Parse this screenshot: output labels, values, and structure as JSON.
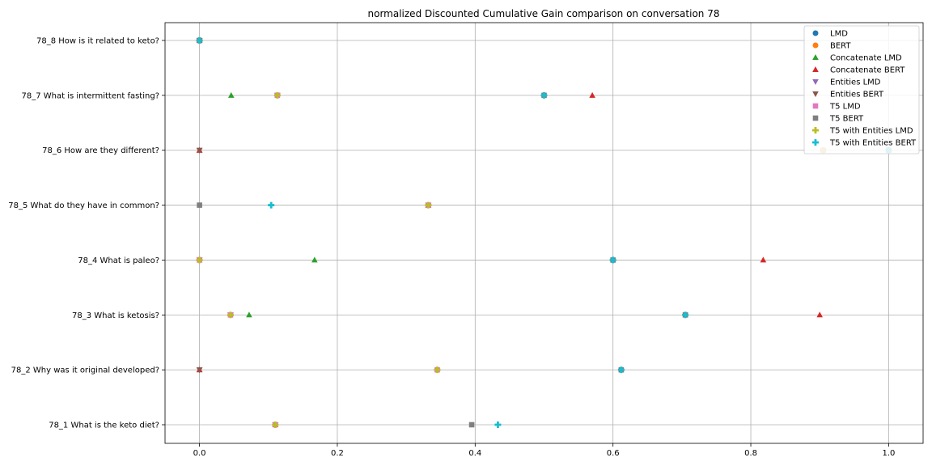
{
  "chart_data": {
    "type": "scatter",
    "title": "normalized Discounted Cumulative Gain comparison on conversation 78",
    "xlabel": "",
    "ylabel": "",
    "xlim": [
      -0.05,
      1.05
    ],
    "x_ticks": [
      "0.0",
      "0.2",
      "0.4",
      "0.6",
      "0.8",
      "1.0"
    ],
    "x_tick_values": [
      0.0,
      0.2,
      0.4,
      0.6,
      0.8,
      1.0
    ],
    "categories": [
      "78_1 What is the keto diet?",
      "78_2 Why was it original developed?",
      "78_3 What is ketosis?",
      "78_4 What is paleo?",
      "78_5 What do they have in common?",
      "78_6 How are they different?",
      "78_7 What is intermittent fasting?",
      "78_8 How is it related to keto?"
    ],
    "grid": true,
    "legend_position": "top-right",
    "series": [
      {
        "name": "LMD",
        "marker": "circle",
        "color": "#1f77b4",
        "values": [
          0.11,
          0.345,
          0.045,
          0.0,
          0.332,
          0.905,
          0.113,
          0.0
        ]
      },
      {
        "name": "BERT",
        "marker": "circle",
        "color": "#ff7f0e",
        "values": [
          0.11,
          0.345,
          0.045,
          0.0,
          0.332,
          0.905,
          0.113,
          0.0
        ]
      },
      {
        "name": "Concatenate LMD",
        "marker": "triangle-up",
        "color": "#2ca02c",
        "values": [
          0.11,
          0.0,
          0.072,
          0.167,
          0.332,
          0.0,
          0.046,
          0.0
        ]
      },
      {
        "name": "Concatenate BERT",
        "marker": "triangle-up",
        "color": "#d62728",
        "values": [
          0.11,
          0.0,
          0.9,
          0.818,
          0.332,
          0.0,
          0.57,
          0.0
        ]
      },
      {
        "name": "Entities LMD",
        "marker": "triangle-down",
        "color": "#9467bd",
        "values": [
          0.11,
          0.0,
          0.045,
          0.0,
          0.332,
          0.0,
          0.113,
          0.0
        ]
      },
      {
        "name": "Entities BERT",
        "marker": "triangle-down",
        "color": "#8c564b",
        "values": [
          0.11,
          0.0,
          0.045,
          0.0,
          0.332,
          0.0,
          0.113,
          0.0
        ]
      },
      {
        "name": "T5 LMD",
        "marker": "square",
        "color": "#e377c2",
        "values": [
          0.11,
          0.345,
          0.045,
          0.0,
          0.332,
          0.905,
          0.113,
          0.0
        ]
      },
      {
        "name": "T5 BERT",
        "marker": "square",
        "color": "#7f7f7f",
        "values": [
          0.395,
          0.612,
          0.705,
          0.6,
          0.0,
          1.0,
          0.5,
          0.0
        ]
      },
      {
        "name": "T5 with Entities LMD",
        "marker": "plus",
        "color": "#bcbd22",
        "values": [
          0.11,
          0.345,
          0.045,
          0.0,
          0.332,
          0.905,
          0.113,
          0.0
        ]
      },
      {
        "name": "T5 with Entities BERT",
        "marker": "plus",
        "color": "#17becf",
        "values": [
          0.433,
          0.612,
          0.705,
          0.6,
          0.104,
          1.0,
          0.5,
          0.0
        ]
      }
    ]
  }
}
